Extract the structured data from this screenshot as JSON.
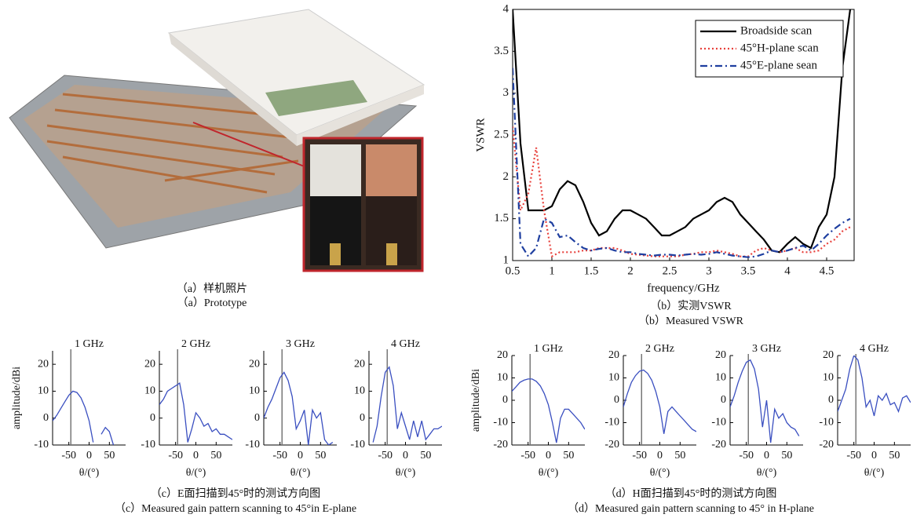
{
  "captions": {
    "a": [
      "（a）样机照片",
      "（a）Prototype"
    ],
    "b": [
      "（b）实测VSWR",
      "（b）Measured VSWR"
    ],
    "c": [
      "（c）E面扫描到45°时的测试方向图",
      "（c）Measured gain pattern scanning to 45°in E-plane"
    ],
    "d": [
      "（d）H面扫描到45°时的测试方向图",
      "（d）Measured gain pattern scanning to 45° in H-plane"
    ]
  },
  "chart_data": [
    {
      "type": "line",
      "xlabel": "frequency/GHz",
      "ylabel": "VSWR",
      "legend": "upper right",
      "xlim": [
        0.5,
        4.85
      ],
      "ylim": [
        1,
        4
      ],
      "xticks": [
        0.5,
        1,
        1.5,
        2,
        2.5,
        3,
        3.5,
        4,
        4.5
      ],
      "yticks": [
        1,
        1.5,
        2,
        2.5,
        3,
        3.5,
        4
      ],
      "x": [
        0.5,
        0.6,
        0.7,
        0.8,
        0.9,
        1.0,
        1.1,
        1.2,
        1.3,
        1.4,
        1.5,
        1.6,
        1.7,
        1.8,
        1.9,
        2.0,
        2.1,
        2.2,
        2.3,
        2.4,
        2.5,
        2.6,
        2.7,
        2.8,
        2.9,
        3.0,
        3.1,
        3.2,
        3.3,
        3.4,
        3.5,
        3.6,
        3.7,
        3.8,
        3.9,
        4.0,
        4.1,
        4.2,
        4.3,
        4.4,
        4.5,
        4.6,
        4.7,
        4.8
      ],
      "series": [
        {
          "name": "Broadside scan",
          "color": "#000000",
          "style": "solid",
          "values": [
            4.0,
            2.4,
            1.6,
            1.6,
            1.6,
            1.65,
            1.85,
            1.95,
            1.9,
            1.7,
            1.45,
            1.3,
            1.35,
            1.5,
            1.6,
            1.6,
            1.55,
            1.5,
            1.4,
            1.3,
            1.3,
            1.35,
            1.4,
            1.5,
            1.55,
            1.6,
            1.7,
            1.75,
            1.7,
            1.55,
            1.45,
            1.35,
            1.25,
            1.12,
            1.1,
            1.2,
            1.28,
            1.2,
            1.15,
            1.4,
            1.55,
            2.0,
            3.3,
            4.0
          ]
        },
        {
          "name": "45°H-plane scan",
          "color": "#e8413c",
          "style": "dotted",
          "values": [
            2.6,
            1.6,
            1.8,
            2.35,
            1.6,
            1.05,
            1.1,
            1.1,
            1.1,
            1.12,
            1.12,
            1.15,
            1.15,
            1.15,
            1.12,
            1.08,
            1.07,
            1.06,
            1.05,
            1.05,
            1.05,
            1.05,
            1.07,
            1.08,
            1.1,
            1.1,
            1.12,
            1.1,
            1.08,
            1.05,
            1.05,
            1.12,
            1.15,
            1.12,
            1.1,
            1.12,
            1.15,
            1.1,
            1.1,
            1.12,
            1.2,
            1.25,
            1.35,
            1.4
          ]
        },
        {
          "name": "45°E-plane sean",
          "color": "#1f3fa0",
          "style": "dashdot",
          "values": [
            3.3,
            1.2,
            1.05,
            1.15,
            1.5,
            1.45,
            1.28,
            1.3,
            1.22,
            1.15,
            1.12,
            1.14,
            1.15,
            1.12,
            1.1,
            1.1,
            1.08,
            1.07,
            1.06,
            1.07,
            1.07,
            1.06,
            1.07,
            1.08,
            1.07,
            1.08,
            1.1,
            1.08,
            1.06,
            1.05,
            1.04,
            1.05,
            1.08,
            1.12,
            1.1,
            1.12,
            1.15,
            1.18,
            1.12,
            1.2,
            1.3,
            1.38,
            1.45,
            1.5
          ]
        }
      ]
    },
    {
      "type": "line",
      "title": "1 GHz",
      "ylabel": "amplitude/dBi",
      "xlabel": "θ/(°)",
      "xlim": [
        -90,
        90
      ],
      "ylim": [
        -10,
        25
      ],
      "xticks": [
        -50,
        0,
        50
      ],
      "yticks": [
        -10,
        0,
        10,
        20
      ],
      "reference_x": -45,
      "color": "#3a4fc0",
      "x": [
        -90,
        -80,
        -70,
        -60,
        -50,
        -40,
        -30,
        -20,
        -10,
        0,
        10,
        20,
        30,
        40,
        50,
        60,
        70,
        80,
        90
      ],
      "values": [
        -1,
        1,
        3.5,
        6,
        8.5,
        10,
        9.5,
        7.5,
        4,
        -1,
        -9,
        null,
        -6,
        -3.5,
        -5,
        -10,
        null,
        null,
        null
      ]
    },
    {
      "type": "line",
      "title": "2 GHz",
      "xlabel": "θ/(°)",
      "xlim": [
        -90,
        90
      ],
      "ylim": [
        -10,
        25
      ],
      "xticks": [
        -50,
        0,
        50
      ],
      "yticks": [
        -10,
        0,
        10,
        20
      ],
      "reference_x": -45,
      "color": "#3a4fc0",
      "x": [
        -90,
        -80,
        -70,
        -60,
        -50,
        -40,
        -30,
        -20,
        -10,
        0,
        10,
        20,
        30,
        40,
        50,
        60,
        70,
        80,
        90
      ],
      "values": [
        5,
        7,
        10,
        11,
        12,
        13,
        5,
        -9,
        -4,
        2,
        0,
        -3,
        -2,
        -5,
        -4,
        -6,
        -6,
        -7,
        -8
      ]
    },
    {
      "type": "line",
      "title": "3 GHz",
      "xlabel": "θ/(°)",
      "xlim": [
        -90,
        90
      ],
      "ylim": [
        -10,
        25
      ],
      "xticks": [
        -50,
        0,
        50
      ],
      "yticks": [
        -10,
        0,
        10,
        20
      ],
      "reference_x": -45,
      "color": "#3a4fc0",
      "x": [
        -90,
        -80,
        -70,
        -60,
        -50,
        -40,
        -30,
        -20,
        -10,
        0,
        10,
        20,
        30,
        40,
        50,
        60,
        70,
        80,
        90
      ],
      "values": [
        0,
        4,
        7,
        11,
        15,
        17,
        14,
        8,
        -4,
        -1,
        3,
        -10,
        3,
        0,
        2,
        -8,
        -10,
        -9,
        null
      ]
    },
    {
      "type": "line",
      "title": "4 GHz",
      "xlabel": "θ/(°)",
      "xlim": [
        -90,
        90
      ],
      "ylim": [
        -10,
        25
      ],
      "xticks": [
        -50,
        0,
        50
      ],
      "yticks": [
        -10,
        0,
        10,
        20
      ],
      "reference_x": -45,
      "color": "#3a4fc0",
      "x": [
        -90,
        -80,
        -70,
        -60,
        -50,
        -40,
        -30,
        -20,
        -10,
        0,
        10,
        20,
        30,
        40,
        50,
        60,
        70,
        80,
        90
      ],
      "values": [
        null,
        -9,
        -3,
        8,
        17,
        19,
        12,
        -4,
        2,
        -3,
        -8,
        -1,
        -7,
        -1,
        -8,
        -6,
        -4,
        -4,
        -3
      ]
    },
    {
      "type": "line",
      "title": "1 GHz",
      "ylabel": "amplitude/dBi",
      "xlabel": "θ/(°)",
      "xlim": [
        -90,
        90
      ],
      "ylim": [
        -20,
        20
      ],
      "xticks": [
        -50,
        0,
        50
      ],
      "yticks": [
        -20,
        -10,
        0,
        10,
        20
      ],
      "reference_x": -45,
      "color": "#3a4fc0",
      "x": [
        -90,
        -80,
        -70,
        -60,
        -50,
        -40,
        -30,
        -20,
        -10,
        0,
        10,
        20,
        30,
        40,
        50,
        60,
        70,
        80,
        90
      ],
      "values": [
        4,
        6,
        8,
        9,
        9.5,
        9.5,
        8.5,
        6.5,
        3,
        -2,
        -10,
        -19,
        -8,
        -4,
        -4,
        -6,
        -8,
        -10,
        -13
      ]
    },
    {
      "type": "line",
      "title": "2 GHz",
      "xlabel": "θ/(°)",
      "xlim": [
        -90,
        90
      ],
      "ylim": [
        -20,
        20
      ],
      "xticks": [
        -50,
        0,
        50
      ],
      "yticks": [
        -20,
        -10,
        0,
        10,
        20
      ],
      "reference_x": -45,
      "color": "#3a4fc0",
      "x": [
        -90,
        -80,
        -70,
        -60,
        -50,
        -40,
        -30,
        -20,
        -10,
        0,
        10,
        20,
        30,
        40,
        50,
        60,
        70,
        80,
        90
      ],
      "values": [
        -3,
        3,
        8,
        11,
        13,
        13.5,
        12,
        9,
        4,
        -3,
        -15,
        -5,
        -3,
        -5,
        -7,
        -9,
        -11,
        -13,
        -14
      ]
    },
    {
      "type": "line",
      "title": "3 GHz",
      "xlabel": "θ/(°)",
      "xlim": [
        -90,
        90
      ],
      "ylim": [
        -20,
        20
      ],
      "xticks": [
        -50,
        0,
        50
      ],
      "yticks": [
        -20,
        -10,
        0,
        10,
        20
      ],
      "reference_x": -45,
      "color": "#3a4fc0",
      "x": [
        -90,
        -80,
        -70,
        -60,
        -50,
        -40,
        -30,
        -20,
        -10,
        0,
        10,
        20,
        30,
        40,
        50,
        60,
        70,
        80,
        90
      ],
      "values": [
        -3,
        2,
        8,
        13,
        17,
        18,
        14,
        5,
        -12,
        0,
        -19,
        -4,
        -8,
        -6,
        -10,
        -12,
        -13,
        -16,
        null
      ]
    },
    {
      "type": "line",
      "title": "4 GHz",
      "xlabel": "θ/(°)",
      "xlim": [
        -90,
        90
      ],
      "ylim": [
        -20,
        20
      ],
      "xticks": [
        -50,
        0,
        50
      ],
      "yticks": [
        -20,
        -10,
        0,
        10,
        20
      ],
      "reference_x": -45,
      "color": "#3a4fc0",
      "x": [
        -90,
        -80,
        -70,
        -60,
        -50,
        -40,
        -30,
        -20,
        -10,
        0,
        10,
        20,
        30,
        40,
        50,
        60,
        70,
        80,
        90
      ],
      "values": [
        -5,
        0,
        5,
        14,
        20,
        18,
        10,
        -3,
        0,
        -7,
        2,
        0,
        3,
        -2,
        -1,
        -5,
        1,
        2,
        -1
      ]
    }
  ]
}
